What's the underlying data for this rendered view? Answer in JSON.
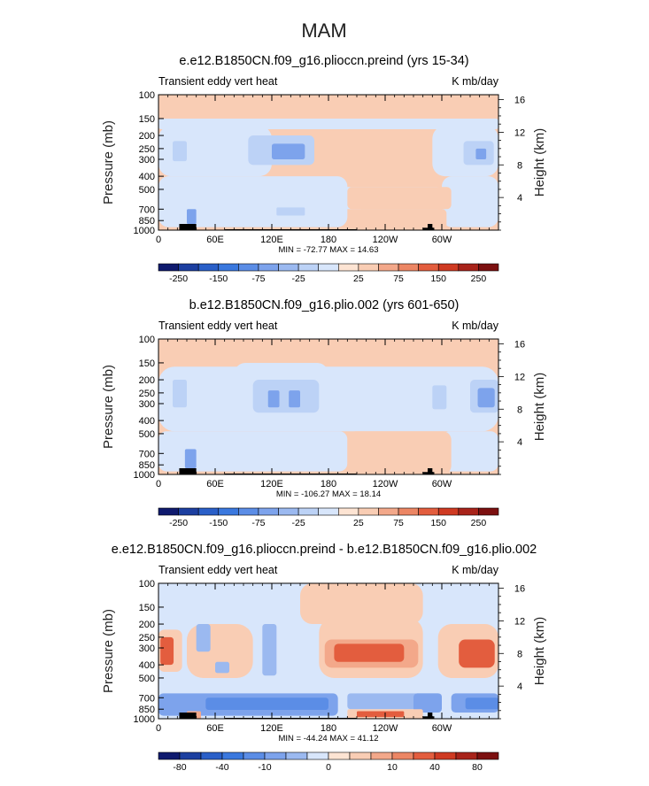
{
  "season": "MAM",
  "chart_data": [
    {
      "type": "heatmap",
      "title": "e.e12.B1850CN.f09_g16.plioccn.preind (yrs 15-34)",
      "variable": "Transient eddy vert heat",
      "units": "K mb/day",
      "xlabel": "",
      "ylabel": "Pressure (mb)",
      "ylabel_right": "Height (km)",
      "x_ticks": [
        "0",
        "60E",
        "120E",
        "180",
        "120W",
        "60W"
      ],
      "x_range_deg": [
        0,
        360
      ],
      "y_ticks": [
        "100",
        "150",
        "200",
        "250",
        "300",
        "400",
        "500",
        "700",
        "850",
        "1000"
      ],
      "y_ticks_value": [
        100,
        150,
        200,
        250,
        300,
        400,
        500,
        700,
        850,
        1000
      ],
      "y_ticks_right": [
        "16",
        "12",
        "8",
        "4"
      ],
      "y_ticks_right_value": [
        16,
        12,
        8,
        4
      ],
      "y_range_mb": [
        1000,
        100
      ],
      "min_max_label": "MIN = -72.77   MAX =  14.63",
      "min": -72.77,
      "max": 14.63,
      "colorbar_labels": [
        "-250",
        "-150",
        "-75",
        "-25",
        "25",
        "75",
        "150",
        "250"
      ],
      "background_level": 25,
      "blobs": [
        {
          "lon": 0,
          "lon_end": 360,
          "p_top": 150,
          "p_bot": 180,
          "level": -10,
          "soft": 0.5
        },
        {
          "lon": 0,
          "lon_end": 360,
          "p_top": 100,
          "p_bot": 118,
          "level": 25,
          "soft": 0.3
        },
        {
          "lon": 0,
          "lon_end": 200,
          "p_top": 400,
          "p_bot": 950,
          "level": -10,
          "soft": 0.4
        },
        {
          "lon": 190,
          "lon_end": 300,
          "p_top": 480,
          "p_bot": 700,
          "level": -10,
          "soft": 0.4
        },
        {
          "lon": 300,
          "lon_end": 360,
          "p_top": 400,
          "p_bot": 950,
          "level": -10,
          "soft": 0.4
        },
        {
          "lon": 290,
          "lon_end": 360,
          "p_top": 170,
          "p_bot": 400,
          "level": -10,
          "soft": 0.5
        },
        {
          "lon": 0,
          "lon_end": 120,
          "p_top": 170,
          "p_bot": 400,
          "level": -10,
          "soft": 0.5
        },
        {
          "lon": 95,
          "lon_end": 165,
          "p_top": 200,
          "p_bot": 330,
          "level": -25,
          "soft": 0.35
        },
        {
          "lon": 120,
          "lon_end": 155,
          "p_top": 230,
          "p_bot": 300,
          "level": -75,
          "soft": 0.3
        },
        {
          "lon": 15,
          "lon_end": 30,
          "p_top": 220,
          "p_bot": 310,
          "level": -25,
          "soft": 0.3
        },
        {
          "lon": 323,
          "lon_end": 355,
          "p_top": 220,
          "p_bot": 330,
          "level": -25,
          "soft": 0.3
        },
        {
          "lon": 336,
          "lon_end": 347,
          "p_top": 250,
          "p_bot": 300,
          "level": -75,
          "soft": 0.3
        },
        {
          "lon": 200,
          "lon_end": 310,
          "p_top": 480,
          "p_bot": 700,
          "level": 25,
          "soft": 0.4
        },
        {
          "lon": 210,
          "lon_end": 305,
          "p_top": 700,
          "p_bot": 1000,
          "level": 25,
          "soft": 0.4
        },
        {
          "lon": 125,
          "lon_end": 155,
          "p_top": 680,
          "p_bot": 780,
          "level": -25,
          "soft": 0.3
        },
        {
          "lon": 30,
          "lon_end": 40,
          "p_top": 700,
          "p_bot": 900,
          "level": -75,
          "soft": 0.3
        }
      ],
      "topography": [
        {
          "lon": 22,
          "lon_end": 40,
          "p_top": 900
        },
        {
          "lon": 70,
          "lon_end": 210,
          "p_top": 985
        },
        {
          "lon": 280,
          "lon_end": 292,
          "p_top": 960
        },
        {
          "lon": 285,
          "lon_end": 290,
          "p_top": 900
        }
      ]
    },
    {
      "type": "heatmap",
      "title": "b.e12.B1850CN.f09_g16.plio.002 (yrs 601-650)",
      "variable": "Transient eddy vert heat",
      "units": "K mb/day",
      "xlabel": "",
      "ylabel": "Pressure (mb)",
      "ylabel_right": "Height (km)",
      "x_ticks": [
        "0",
        "60E",
        "120E",
        "180",
        "120W",
        "60W"
      ],
      "x_range_deg": [
        0,
        360
      ],
      "y_ticks": [
        "100",
        "150",
        "200",
        "250",
        "300",
        "400",
        "500",
        "700",
        "850",
        "1000"
      ],
      "y_ticks_value": [
        100,
        150,
        200,
        250,
        300,
        400,
        500,
        700,
        850,
        1000
      ],
      "y_ticks_right": [
        "16",
        "12",
        "8",
        "4"
      ],
      "y_ticks_right_value": [
        16,
        12,
        8,
        4
      ],
      "y_range_mb": [
        1000,
        100
      ],
      "min_max_label": "MIN = -106.27   MAX =  18.14",
      "min": -106.27,
      "max": 18.14,
      "colorbar_labels": [
        "-250",
        "-150",
        "-75",
        "-25",
        "25",
        "75",
        "150",
        "250"
      ],
      "background_level": 25,
      "blobs": [
        {
          "lon": 0,
          "lon_end": 360,
          "p_top": 160,
          "p_bot": 480,
          "level": -10,
          "soft": 0.5
        },
        {
          "lon": 0,
          "lon_end": 200,
          "p_top": 480,
          "p_bot": 950,
          "level": -10,
          "soft": 0.4
        },
        {
          "lon": 300,
          "lon_end": 360,
          "p_top": 480,
          "p_bot": 950,
          "level": -10,
          "soft": 0.4
        },
        {
          "lon": 80,
          "lon_end": 180,
          "p_top": 150,
          "p_bot": 400,
          "level": -10,
          "soft": 0.4
        },
        {
          "lon": 100,
          "lon_end": 170,
          "p_top": 200,
          "p_bot": 350,
          "level": -25,
          "soft": 0.35
        },
        {
          "lon": 116,
          "lon_end": 128,
          "p_top": 240,
          "p_bot": 320,
          "level": -75,
          "soft": 0.3
        },
        {
          "lon": 138,
          "lon_end": 150,
          "p_top": 240,
          "p_bot": 320,
          "level": -75,
          "soft": 0.3
        },
        {
          "lon": 15,
          "lon_end": 30,
          "p_top": 200,
          "p_bot": 320,
          "level": -25,
          "soft": 0.3
        },
        {
          "lon": 330,
          "lon_end": 360,
          "p_top": 200,
          "p_bot": 350,
          "level": -25,
          "soft": 0.3
        },
        {
          "lon": 338,
          "lon_end": 356,
          "p_top": 230,
          "p_bot": 320,
          "level": -75,
          "soft": 0.3
        },
        {
          "lon": 290,
          "lon_end": 305,
          "p_top": 220,
          "p_bot": 330,
          "level": -25,
          "soft": 0.3
        },
        {
          "lon": 200,
          "lon_end": 310,
          "p_top": 480,
          "p_bot": 1000,
          "level": 25,
          "soft": 0.4
        },
        {
          "lon": 28,
          "lon_end": 40,
          "p_top": 650,
          "p_bot": 900,
          "level": -75,
          "soft": 0.3
        }
      ],
      "topography": [
        {
          "lon": 22,
          "lon_end": 40,
          "p_top": 900
        },
        {
          "lon": 70,
          "lon_end": 210,
          "p_top": 985
        },
        {
          "lon": 280,
          "lon_end": 292,
          "p_top": 960
        },
        {
          "lon": 285,
          "lon_end": 290,
          "p_top": 900
        }
      ]
    },
    {
      "type": "heatmap",
      "title": "e.e12.B1850CN.f09_g16.plioccn.preind - b.e12.B1850CN.f09_g16.plio.002",
      "variable": "Transient eddy vert heat",
      "units": "K mb/day",
      "xlabel": "",
      "ylabel": "Pressure (mb)",
      "ylabel_right": "Height (km)",
      "x_ticks": [
        "0",
        "60E",
        "120E",
        "180",
        "120W",
        "60W"
      ],
      "x_range_deg": [
        0,
        360
      ],
      "y_ticks": [
        "100",
        "150",
        "200",
        "250",
        "300",
        "400",
        "500",
        "700",
        "850",
        "1000"
      ],
      "y_ticks_value": [
        100,
        150,
        200,
        250,
        300,
        400,
        500,
        700,
        850,
        1000
      ],
      "y_ticks_right": [
        "16",
        "12",
        "8",
        "4"
      ],
      "y_ticks_right_value": [
        16,
        12,
        8,
        4
      ],
      "y_range_mb": [
        1000,
        100
      ],
      "min_max_label": "MIN = -44.24   MAX =  41.12",
      "min": -44.24,
      "max": 41.12,
      "colorbar_labels": [
        "-80",
        "-40",
        "-10",
        "0",
        "10",
        "40",
        "80"
      ],
      "background_level": -1,
      "blobs": [
        {
          "lon": 0,
          "lon_end": 360,
          "p_top": 100,
          "p_bot": 180,
          "level": -1,
          "soft": 0.5
        },
        {
          "lon": 0,
          "lon_end": 360,
          "p_top": 480,
          "p_bot": 650,
          "level": -1,
          "soft": 0.5
        },
        {
          "lon": 30,
          "lon_end": 100,
          "p_top": 200,
          "p_bot": 500,
          "level": 1,
          "soft": 0.6
        },
        {
          "lon": 150,
          "lon_end": 280,
          "p_top": 100,
          "p_bot": 200,
          "level": 1,
          "soft": 0.6
        },
        {
          "lon": 170,
          "lon_end": 280,
          "p_top": 180,
          "p_bot": 500,
          "level": 3,
          "soft": 0.5
        },
        {
          "lon": 176,
          "lon_end": 275,
          "p_top": 260,
          "p_bot": 420,
          "level": 7,
          "soft": 0.5
        },
        {
          "lon": 186,
          "lon_end": 260,
          "p_top": 280,
          "p_bot": 380,
          "level": 20,
          "soft": 0.45
        },
        {
          "lon": 296,
          "lon_end": 360,
          "p_top": 200,
          "p_bot": 500,
          "level": 3,
          "soft": 0.5
        },
        {
          "lon": 318,
          "lon_end": 356,
          "p_top": 260,
          "p_bot": 420,
          "level": 20,
          "soft": 0.45
        },
        {
          "lon": 0,
          "lon_end": 25,
          "p_top": 220,
          "p_bot": 450,
          "level": 3,
          "soft": 0.5
        },
        {
          "lon": 2,
          "lon_end": 16,
          "p_top": 250,
          "p_bot": 400,
          "level": 20,
          "soft": 0.45
        },
        {
          "lon": 40,
          "lon_end": 55,
          "p_top": 200,
          "p_bot": 320,
          "level": -5,
          "soft": 0.4
        },
        {
          "lon": 60,
          "lon_end": 75,
          "p_top": 380,
          "p_bot": 460,
          "level": -5,
          "soft": 0.4
        },
        {
          "lon": 110,
          "lon_end": 125,
          "p_top": 200,
          "p_bot": 480,
          "level": -3,
          "soft": 0.4
        },
        {
          "lon": 200,
          "lon_end": 300,
          "p_top": 650,
          "p_bot": 850,
          "level": -3,
          "soft": 0.4
        },
        {
          "lon": 0,
          "lon_end": 190,
          "p_top": 650,
          "p_bot": 950,
          "level": -7,
          "soft": 0.45
        },
        {
          "lon": 50,
          "lon_end": 180,
          "p_top": 700,
          "p_bot": 860,
          "level": -20,
          "soft": 0.45
        },
        {
          "lon": 310,
          "lon_end": 360,
          "p_top": 650,
          "p_bot": 900,
          "level": -7,
          "soft": 0.45
        },
        {
          "lon": 325,
          "lon_end": 360,
          "p_top": 700,
          "p_bot": 850,
          "level": -20,
          "soft": 0.4
        },
        {
          "lon": 270,
          "lon_end": 300,
          "p_top": 650,
          "p_bot": 900,
          "level": -7,
          "soft": 0.4
        },
        {
          "lon": 200,
          "lon_end": 280,
          "p_top": 850,
          "p_bot": 1000,
          "level": 3,
          "soft": 0.4
        },
        {
          "lon": 210,
          "lon_end": 260,
          "p_top": 880,
          "p_bot": 970,
          "level": 20,
          "soft": 0.4
        },
        {
          "lon": 30,
          "lon_end": 45,
          "p_top": 880,
          "p_bot": 1000,
          "level": 7,
          "soft": 0.3
        }
      ],
      "topography": [
        {
          "lon": 22,
          "lon_end": 40,
          "p_top": 900
        },
        {
          "lon": 70,
          "lon_end": 210,
          "p_top": 985
        },
        {
          "lon": 280,
          "lon_end": 292,
          "p_top": 960
        },
        {
          "lon": 285,
          "lon_end": 290,
          "p_top": 900
        }
      ]
    }
  ],
  "colormaps": {
    "abs": {
      "levels": [
        -250,
        -200,
        -150,
        -100,
        -75,
        -50,
        -25,
        -10,
        10,
        25,
        50,
        75,
        100,
        150,
        200,
        250
      ],
      "colors": [
        "#0f1a6e",
        "#1c3fa0",
        "#2a5fc8",
        "#3a78de",
        "#5b8de6",
        "#7da3ec",
        "#9bb9f0",
        "#bcd2f6",
        "#d8e6fb",
        "#fde4d3",
        "#f9cdb4",
        "#f3a88a",
        "#ec8664",
        "#e35d3e",
        "#cf3a22",
        "#a8231a",
        "#7c1010"
      ]
    },
    "diff": {
      "levels": [
        -80,
        -60,
        -40,
        -20,
        -10,
        -5,
        -1,
        0,
        1,
        5,
        10,
        20,
        40,
        60,
        80
      ],
      "colors": [
        "#0f1a6e",
        "#1c3fa0",
        "#2a5fc8",
        "#3a78de",
        "#5b8de6",
        "#7da3ec",
        "#9bb9f0",
        "#d8e6fb",
        "#fde4d3",
        "#f9cdb4",
        "#f3a88a",
        "#ec8664",
        "#e35d3e",
        "#cf3a22",
        "#a8231a",
        "#7c1010"
      ]
    }
  }
}
